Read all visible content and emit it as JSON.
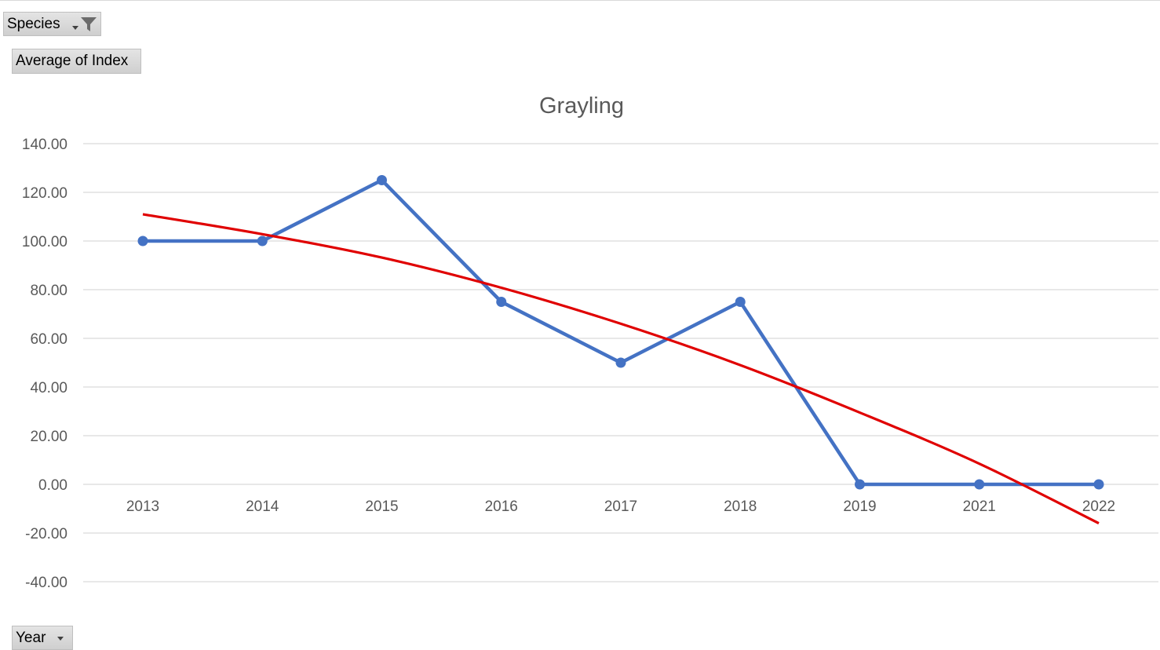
{
  "fields": {
    "filter_field": "Species",
    "values_field": "Average of Index",
    "axis_field": "Year"
  },
  "icons": {
    "filter": "filter-icon",
    "dropdown": "chevron-down-icon"
  },
  "colors": {
    "series": "#4472c4",
    "trendline": "#e00000",
    "gridline": "#d9d9d9",
    "text": "#595959"
  },
  "chart_data": {
    "type": "line",
    "title": "Grayling",
    "xlabel": "",
    "ylabel": "",
    "categories": [
      "2013",
      "2014",
      "2015",
      "2016",
      "2017",
      "2018",
      "2019",
      "2021",
      "2022"
    ],
    "series": [
      {
        "values": [
          100,
          100,
          125,
          75,
          50,
          75,
          0,
          0,
          0
        ],
        "markers": true
      }
    ],
    "trendline": {
      "type": "polynomial",
      "values": [
        111,
        102.8,
        93.2,
        80.8,
        66,
        49,
        29.5,
        8.5,
        -16
      ]
    },
    "ylim": [
      -40,
      140
    ],
    "ytick_step": 20,
    "ytick_format": "0.00",
    "grid": true,
    "legend": "none"
  }
}
